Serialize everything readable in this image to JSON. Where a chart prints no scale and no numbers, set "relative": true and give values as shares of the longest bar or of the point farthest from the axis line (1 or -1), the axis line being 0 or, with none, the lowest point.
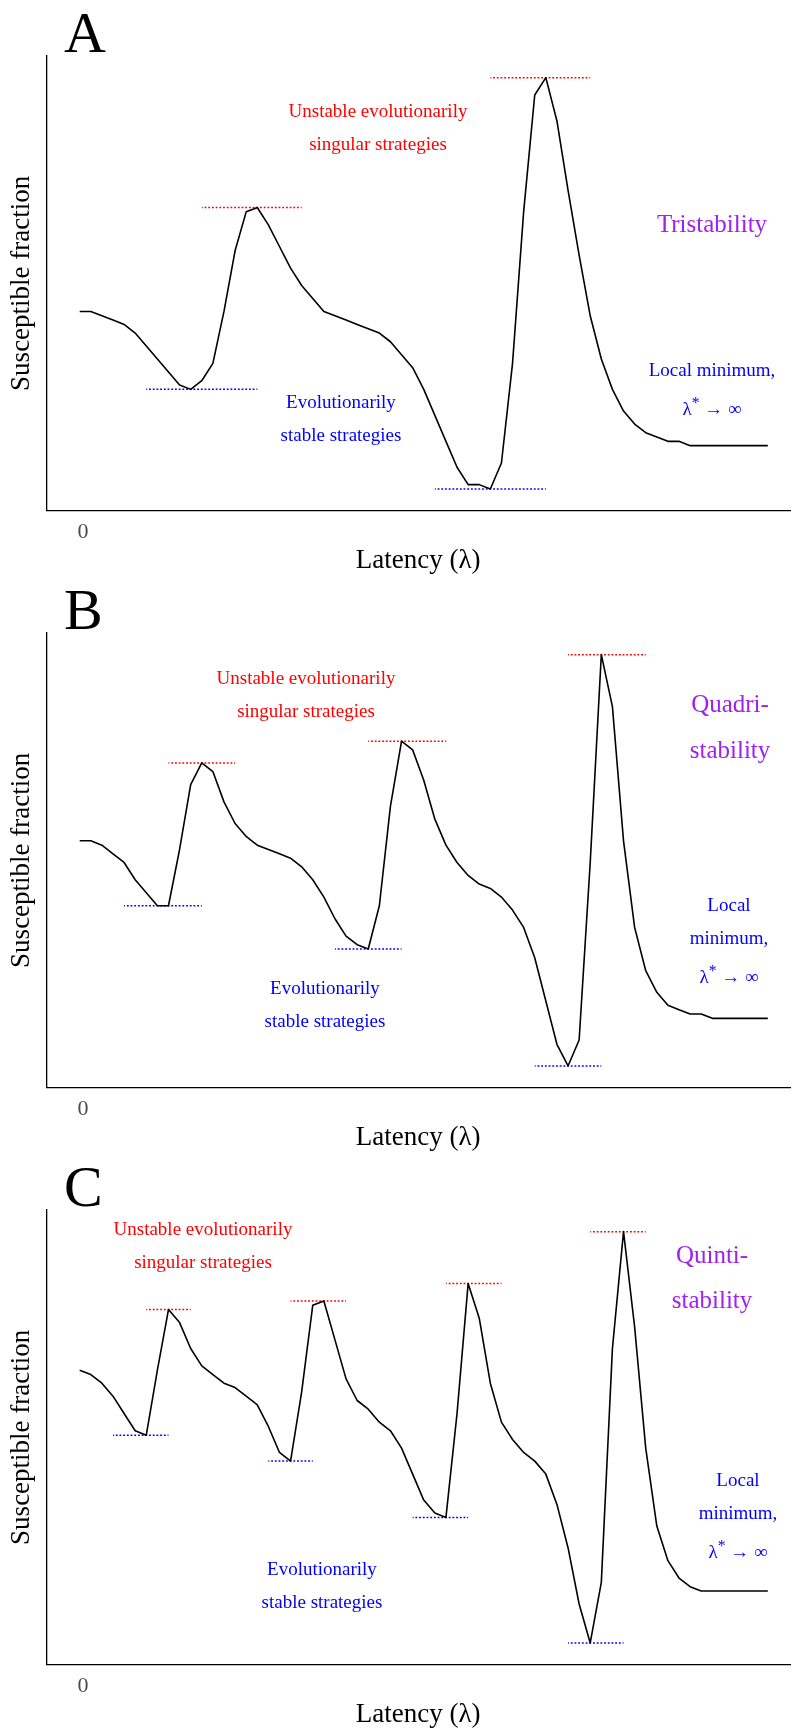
{
  "chart_data": [
    {
      "type": "line",
      "title": "A",
      "xlabel": "Latency (λ)",
      "ylabel": "Susceptible fraction",
      "relative": true,
      "legend": false,
      "grid": false,
      "marker": "none",
      "line_style": "solid",
      "categories": [
        null,
        null,
        null,
        null,
        null,
        null,
        null,
        null,
        null,
        null,
        null,
        null,
        null,
        null,
        null,
        null,
        null,
        null,
        null,
        null,
        null,
        null,
        null,
        null,
        null,
        null,
        null,
        null,
        null,
        null,
        null,
        null,
        null,
        null,
        null,
        null,
        null,
        null,
        null,
        null,
        null,
        null,
        null,
        null,
        null,
        null,
        null,
        null,
        null,
        null,
        null,
        null,
        null,
        null,
        null,
        null,
        null,
        null,
        null,
        null,
        null,
        null,
        null,
        null,
        null,
        null,
        null,
        null
      ],
      "series": [
        {
          "color": "#000000",
          "values": [
            null,
            null,
            null,
            0.46,
            0.46,
            0.45,
            0.44,
            0.43,
            0.41,
            0.38,
            0.35,
            0.32,
            0.29,
            0.28,
            0.3,
            0.34,
            0.46,
            0.6,
            0.69,
            0.7,
            0.66,
            0.61,
            0.56,
            0.52,
            0.49,
            0.46,
            0.45,
            0.44,
            0.43,
            0.42,
            0.41,
            0.39,
            0.36,
            0.33,
            0.28,
            0.22,
            0.16,
            0.1,
            0.06,
            0.06,
            0.05,
            0.11,
            0.34,
            0.69,
            0.96,
            1,
            0.9,
            0.74,
            0.59,
            0.45,
            0.35,
            0.28,
            0.23,
            0.2,
            0.18,
            0.17,
            0.16,
            0.16,
            0.15,
            0.15,
            0.15,
            0.15,
            0.15,
            0.15,
            0.15,
            0.15,
            null,
            null
          ]
        },
        {
          "color": "#ff0000",
          "line_style": "dotted",
          "values": [
            null,
            null,
            null,
            null,
            null,
            null,
            null,
            null,
            null,
            null,
            null,
            null,
            null,
            null,
            0.7,
            0.7,
            0.7,
            0.7,
            0.7,
            0.7,
            0.7,
            0.7,
            0.7,
            0.7,
            null,
            null,
            null,
            null,
            null,
            null,
            null,
            null,
            null,
            null,
            null,
            null,
            null,
            null,
            null,
            null,
            null,
            null,
            null,
            null,
            null,
            null,
            null,
            null,
            null,
            null,
            null,
            null,
            null,
            null,
            null,
            null,
            null,
            null,
            null,
            null,
            null,
            null,
            null,
            null,
            null,
            null,
            null,
            null
          ]
        },
        {
          "color": "#ff0000",
          "line_style": "dotted",
          "values": [
            null,
            null,
            null,
            null,
            null,
            null,
            null,
            null,
            null,
            null,
            null,
            null,
            null,
            null,
            null,
            null,
            null,
            null,
            null,
            null,
            null,
            null,
            null,
            null,
            null,
            null,
            null,
            null,
            null,
            null,
            null,
            null,
            null,
            null,
            null,
            null,
            null,
            null,
            null,
            null,
            1,
            1,
            1,
            1,
            1,
            1,
            1,
            1,
            1,
            1,
            null,
            null,
            null,
            null,
            null,
            null,
            null,
            null,
            null,
            null,
            null,
            null,
            null,
            null,
            null,
            null,
            null,
            null
          ]
        },
        {
          "color": "#0000ff",
          "line_style": "dotted",
          "values": [
            null,
            null,
            null,
            null,
            null,
            null,
            null,
            null,
            null,
            0.28,
            0.28,
            0.28,
            0.28,
            0.28,
            0.28,
            0.28,
            0.28,
            0.28,
            0.28,
            0.28,
            null,
            null,
            null,
            null,
            null,
            null,
            null,
            null,
            null,
            null,
            null,
            null,
            null,
            null,
            null,
            null,
            null,
            null,
            null,
            null,
            null,
            null,
            null,
            null,
            null,
            null,
            null,
            null,
            null,
            null,
            null,
            null,
            null,
            null,
            null,
            null,
            null,
            null,
            null,
            null,
            null,
            null,
            null,
            null,
            null,
            null,
            null,
            null
          ]
        },
        {
          "color": "#0000ff",
          "line_style": "dotted",
          "values": [
            null,
            null,
            null,
            null,
            null,
            null,
            null,
            null,
            null,
            null,
            null,
            null,
            null,
            null,
            null,
            null,
            null,
            null,
            null,
            null,
            null,
            null,
            null,
            null,
            null,
            null,
            null,
            null,
            null,
            null,
            null,
            null,
            null,
            null,
            null,
            0.05,
            0.05,
            0.05,
            0.05,
            0.05,
            0.05,
            0.05,
            0.05,
            0.05,
            0.05,
            0.05,
            null,
            null,
            null,
            null,
            null,
            null,
            null,
            null,
            null,
            null,
            null,
            null,
            null,
            null,
            null,
            null,
            null,
            null,
            null,
            null,
            null,
            null
          ]
        }
      ],
      "annotations": [
        "Unstable evolutionarily singular strategies",
        "Evolutionarily stable strategies",
        "Tristability",
        "Local minimum, λ$^{*}$ → ∞",
        "0"
      ]
    },
    {
      "type": "line",
      "title": "B",
      "xlabel": "Latency (λ)",
      "ylabel": "Susceptible fraction",
      "relative": true,
      "legend": false,
      "grid": false,
      "marker": "none",
      "line_style": "solid",
      "categories": [
        null,
        null,
        null,
        null,
        null,
        null,
        null,
        null,
        null,
        null,
        null,
        null,
        null,
        null,
        null,
        null,
        null,
        null,
        null,
        null,
        null,
        null,
        null,
        null,
        null,
        null,
        null,
        null,
        null,
        null,
        null,
        null,
        null,
        null,
        null,
        null,
        null,
        null,
        null,
        null,
        null,
        null,
        null,
        null,
        null,
        null,
        null,
        null,
        null,
        null,
        null,
        null,
        null,
        null,
        null,
        null,
        null,
        null,
        null,
        null,
        null,
        null,
        null,
        null,
        null,
        null,
        null,
        null
      ],
      "series": [
        {
          "color": "#000000",
          "values": [
            null,
            null,
            null,
            0.57,
            0.57,
            0.56,
            0.54,
            0.52,
            0.48,
            0.45,
            0.42,
            0.42,
            0.55,
            0.7,
            0.75,
            0.73,
            0.66,
            0.61,
            0.58,
            0.56,
            0.55,
            0.54,
            0.53,
            0.51,
            0.48,
            0.44,
            0.39,
            0.35,
            0.33,
            0.32,
            0.42,
            0.65,
            0.8,
            0.78,
            0.71,
            0.62,
            0.56,
            0.52,
            0.49,
            0.47,
            0.46,
            0.44,
            0.41,
            0.37,
            0.3,
            0.2,
            0.1,
            0.05,
            0.11,
            0.52,
            1,
            0.88,
            0.57,
            0.37,
            0.27,
            0.22,
            0.19,
            0.18,
            0.17,
            0.17,
            0.16,
            0.16,
            0.16,
            0.16,
            0.16,
            0.16,
            null,
            null
          ]
        },
        {
          "color": "#ff0000",
          "line_style": "dotted",
          "values": [
            null,
            null,
            null,
            null,
            null,
            null,
            null,
            null,
            null,
            null,
            null,
            0.75,
            0.75,
            0.75,
            0.75,
            0.75,
            0.75,
            0.75,
            null,
            null,
            null,
            null,
            null,
            null,
            null,
            null,
            null,
            null,
            null,
            null,
            null,
            null,
            null,
            null,
            null,
            null,
            null,
            null,
            null,
            null,
            null,
            null,
            null,
            null,
            null,
            null,
            null,
            null,
            null,
            null,
            null,
            null,
            null,
            null,
            null,
            null,
            null,
            null,
            null,
            null,
            null,
            null,
            null,
            null,
            null,
            null,
            null,
            null
          ]
        },
        {
          "color": "#ff0000",
          "line_style": "dotted",
          "values": [
            null,
            null,
            null,
            null,
            null,
            null,
            null,
            null,
            null,
            null,
            null,
            null,
            null,
            null,
            null,
            null,
            null,
            null,
            null,
            null,
            null,
            null,
            null,
            null,
            null,
            null,
            null,
            null,
            null,
            0.8,
            0.8,
            0.8,
            0.8,
            0.8,
            0.8,
            0.8,
            0.8,
            null,
            null,
            null,
            null,
            null,
            null,
            null,
            null,
            null,
            null,
            null,
            null,
            null,
            null,
            null,
            null,
            null,
            null,
            null,
            null,
            null,
            null,
            null,
            null,
            null,
            null,
            null,
            null,
            null,
            null,
            null
          ]
        },
        {
          "color": "#ff0000",
          "line_style": "dotted",
          "values": [
            null,
            null,
            null,
            null,
            null,
            null,
            null,
            null,
            null,
            null,
            null,
            null,
            null,
            null,
            null,
            null,
            null,
            null,
            null,
            null,
            null,
            null,
            null,
            null,
            null,
            null,
            null,
            null,
            null,
            null,
            null,
            null,
            null,
            null,
            null,
            null,
            null,
            null,
            null,
            null,
            null,
            null,
            null,
            null,
            null,
            null,
            null,
            1,
            1,
            1,
            1,
            1,
            1,
            1,
            1,
            null,
            null,
            null,
            null,
            null,
            null,
            null,
            null,
            null,
            null,
            null,
            null,
            null
          ]
        },
        {
          "color": "#0000ff",
          "line_style": "dotted",
          "values": [
            null,
            null,
            null,
            null,
            null,
            null,
            null,
            0.42,
            0.42,
            0.42,
            0.42,
            0.42,
            0.42,
            0.42,
            0.42,
            null,
            null,
            null,
            null,
            null,
            null,
            null,
            null,
            null,
            null,
            null,
            null,
            null,
            null,
            null,
            null,
            null,
            null,
            null,
            null,
            null,
            null,
            null,
            null,
            null,
            null,
            null,
            null,
            null,
            null,
            null,
            null,
            null,
            null,
            null,
            null,
            null,
            null,
            null,
            null,
            null,
            null,
            null,
            null,
            null,
            null,
            null,
            null,
            null,
            null,
            null,
            null,
            null
          ]
        },
        {
          "color": "#0000ff",
          "line_style": "dotted",
          "values": [
            null,
            null,
            null,
            null,
            null,
            null,
            null,
            null,
            null,
            null,
            null,
            null,
            null,
            null,
            null,
            null,
            null,
            null,
            null,
            null,
            null,
            null,
            null,
            null,
            null,
            null,
            0.32,
            0.32,
            0.32,
            0.32,
            0.32,
            0.32,
            0.32,
            null,
            null,
            null,
            null,
            null,
            null,
            null,
            null,
            null,
            null,
            null,
            null,
            null,
            null,
            null,
            null,
            null,
            null,
            null,
            null,
            null,
            null,
            null,
            null,
            null,
            null,
            null,
            null,
            null,
            null,
            null,
            null,
            null,
            null,
            null
          ]
        },
        {
          "color": "#0000ff",
          "line_style": "dotted",
          "values": [
            null,
            null,
            null,
            null,
            null,
            null,
            null,
            null,
            null,
            null,
            null,
            null,
            null,
            null,
            null,
            null,
            null,
            null,
            null,
            null,
            null,
            null,
            null,
            null,
            null,
            null,
            null,
            null,
            null,
            null,
            null,
            null,
            null,
            null,
            null,
            null,
            null,
            null,
            null,
            null,
            null,
            null,
            null,
            null,
            0.05,
            0.05,
            0.05,
            0.05,
            0.05,
            0.05,
            0.05,
            null,
            null,
            null,
            null,
            null,
            null,
            null,
            null,
            null,
            null,
            null,
            null,
            null,
            null,
            null,
            null,
            null
          ]
        }
      ],
      "annotations": [
        "Unstable evolutionarily singular strategies",
        "Evolutionarily stable strategies",
        "Quadri-stability",
        "Local minimum, λ$^{*}$ → ∞",
        "0"
      ]
    },
    {
      "type": "line",
      "title": "C",
      "xlabel": "Latency (λ)",
      "ylabel": "Susceptible fraction",
      "relative": true,
      "legend": false,
      "grid": false,
      "marker": "none",
      "line_style": "solid",
      "categories": [
        null,
        null,
        null,
        null,
        null,
        null,
        null,
        null,
        null,
        null,
        null,
        null,
        null,
        null,
        null,
        null,
        null,
        null,
        null,
        null,
        null,
        null,
        null,
        null,
        null,
        null,
        null,
        null,
        null,
        null,
        null,
        null,
        null,
        null,
        null,
        null,
        null,
        null,
        null,
        null,
        null,
        null,
        null,
        null,
        null,
        null,
        null,
        null,
        null,
        null,
        null,
        null,
        null,
        null,
        null,
        null,
        null,
        null,
        null,
        null,
        null,
        null,
        null,
        null,
        null,
        null,
        null,
        null
      ],
      "series": [
        {
          "color": "#000000",
          "values": [
            null,
            null,
            null,
            0.68,
            0.67,
            0.65,
            0.62,
            0.58,
            0.54,
            0.53,
            0.68,
            0.82,
            0.79,
            0.73,
            0.69,
            0.67,
            0.65,
            0.64,
            0.62,
            0.6,
            0.55,
            0.49,
            0.47,
            0.63,
            0.83,
            0.84,
            0.75,
            0.66,
            0.61,
            0.59,
            0.56,
            0.54,
            0.5,
            0.44,
            0.38,
            0.35,
            0.34,
            0.58,
            0.88,
            0.8,
            0.65,
            0.56,
            0.52,
            0.49,
            0.47,
            0.44,
            0.37,
            0.27,
            0.14,
            0.05,
            0.19,
            0.73,
            1,
            0.78,
            0.5,
            0.32,
            0.24,
            0.2,
            0.18,
            0.17,
            0.17,
            0.17,
            0.17,
            0.17,
            0.17,
            0.17,
            null,
            null
          ]
        },
        {
          "color": "#ff0000",
          "line_style": "dotted",
          "values": [
            null,
            null,
            null,
            null,
            null,
            null,
            null,
            null,
            null,
            0.82,
            0.82,
            0.82,
            0.82,
            0.82,
            null,
            null,
            null,
            null,
            null,
            null,
            null,
            null,
            null,
            null,
            null,
            null,
            null,
            null,
            null,
            null,
            null,
            null,
            null,
            null,
            null,
            null,
            null,
            null,
            null,
            null,
            null,
            null,
            null,
            null,
            null,
            null,
            null,
            null,
            null,
            null,
            null,
            null,
            null,
            null,
            null,
            null,
            null,
            null,
            null,
            null,
            null,
            null,
            null,
            null,
            null,
            null,
            null,
            null
          ]
        },
        {
          "color": "#ff0000",
          "line_style": "dotted",
          "values": [
            null,
            null,
            null,
            null,
            null,
            null,
            null,
            null,
            null,
            null,
            null,
            null,
            null,
            null,
            null,
            null,
            null,
            null,
            null,
            null,
            null,
            null,
            0.84,
            0.84,
            0.84,
            0.84,
            0.84,
            0.84,
            null,
            null,
            null,
            null,
            null,
            null,
            null,
            null,
            null,
            null,
            null,
            null,
            null,
            null,
            null,
            null,
            null,
            null,
            null,
            null,
            null,
            null,
            null,
            null,
            null,
            null,
            null,
            null,
            null,
            null,
            null,
            null,
            null,
            null,
            null,
            null,
            null,
            null,
            null,
            null
          ]
        },
        {
          "color": "#ff0000",
          "line_style": "dotted",
          "values": [
            null,
            null,
            null,
            null,
            null,
            null,
            null,
            null,
            null,
            null,
            null,
            null,
            null,
            null,
            null,
            null,
            null,
            null,
            null,
            null,
            null,
            null,
            null,
            null,
            null,
            null,
            null,
            null,
            null,
            null,
            null,
            null,
            null,
            null,
            null,
            null,
            0.88,
            0.88,
            0.88,
            0.88,
            0.88,
            0.88,
            null,
            null,
            null,
            null,
            null,
            null,
            null,
            null,
            null,
            null,
            null,
            null,
            null,
            null,
            null,
            null,
            null,
            null,
            null,
            null,
            null,
            null,
            null,
            null,
            null,
            null
          ]
        },
        {
          "color": "#ff0000",
          "line_style": "dotted",
          "values": [
            null,
            null,
            null,
            null,
            null,
            null,
            null,
            null,
            null,
            null,
            null,
            null,
            null,
            null,
            null,
            null,
            null,
            null,
            null,
            null,
            null,
            null,
            null,
            null,
            null,
            null,
            null,
            null,
            null,
            null,
            null,
            null,
            null,
            null,
            null,
            null,
            null,
            null,
            null,
            null,
            null,
            null,
            null,
            null,
            null,
            null,
            null,
            null,
            null,
            1,
            1,
            1,
            1,
            1,
            1,
            null,
            null,
            null,
            null,
            null,
            null,
            null,
            null,
            null,
            null,
            null,
            null,
            null
          ]
        },
        {
          "color": "#0000ff",
          "line_style": "dotted",
          "values": [
            null,
            null,
            null,
            null,
            null,
            null,
            0.53,
            0.53,
            0.53,
            0.53,
            0.53,
            0.53,
            null,
            null,
            null,
            null,
            null,
            null,
            null,
            null,
            null,
            null,
            null,
            null,
            null,
            null,
            null,
            null,
            null,
            null,
            null,
            null,
            null,
            null,
            null,
            null,
            null,
            null,
            null,
            null,
            null,
            null,
            null,
            null,
            null,
            null,
            null,
            null,
            null,
            null,
            null,
            null,
            null,
            null,
            null,
            null,
            null,
            null,
            null,
            null,
            null,
            null,
            null,
            null,
            null,
            null,
            null,
            null
          ]
        },
        {
          "color": "#0000ff",
          "line_style": "dotted",
          "values": [
            null,
            null,
            null,
            null,
            null,
            null,
            null,
            null,
            null,
            null,
            null,
            null,
            null,
            null,
            null,
            null,
            null,
            null,
            null,
            null,
            0.47,
            0.47,
            0.47,
            0.47,
            0.47,
            null,
            null,
            null,
            null,
            null,
            null,
            null,
            null,
            null,
            null,
            null,
            null,
            null,
            null,
            null,
            null,
            null,
            null,
            null,
            null,
            null,
            null,
            null,
            null,
            null,
            null,
            null,
            null,
            null,
            null,
            null,
            null,
            null,
            null,
            null,
            null,
            null,
            null,
            null,
            null,
            null,
            null,
            null
          ]
        },
        {
          "color": "#0000ff",
          "line_style": "dotted",
          "values": [
            null,
            null,
            null,
            null,
            null,
            null,
            null,
            null,
            null,
            null,
            null,
            null,
            null,
            null,
            null,
            null,
            null,
            null,
            null,
            null,
            null,
            null,
            null,
            null,
            null,
            null,
            null,
            null,
            null,
            null,
            null,
            null,
            null,
            0.34,
            0.34,
            0.34,
            0.34,
            0.34,
            0.34,
            null,
            null,
            null,
            null,
            null,
            null,
            null,
            null,
            null,
            null,
            null,
            null,
            null,
            null,
            null,
            null,
            null,
            null,
            null,
            null,
            null,
            null,
            null,
            null,
            null,
            null,
            null,
            null,
            null
          ]
        },
        {
          "color": "#0000ff",
          "line_style": "dotted",
          "values": [
            null,
            null,
            null,
            null,
            null,
            null,
            null,
            null,
            null,
            null,
            null,
            null,
            null,
            null,
            null,
            null,
            null,
            null,
            null,
            null,
            null,
            null,
            null,
            null,
            null,
            null,
            null,
            null,
            null,
            null,
            null,
            null,
            null,
            null,
            null,
            null,
            null,
            null,
            null,
            null,
            null,
            null,
            null,
            null,
            null,
            null,
            null,
            0.05,
            0.05,
            0.05,
            0.05,
            0.05,
            0.05,
            null,
            null,
            null,
            null,
            null,
            null,
            null,
            null,
            null,
            null,
            null,
            null,
            null,
            null,
            null
          ]
        }
      ],
      "annotations": [
        "Unstable evolutionarily singular strategies",
        "Evolutionarily stable strategies",
        "Quinti-stability",
        "Local minimum, λ$^{*}$ → ∞",
        "0"
      ]
    }
  ]
}
